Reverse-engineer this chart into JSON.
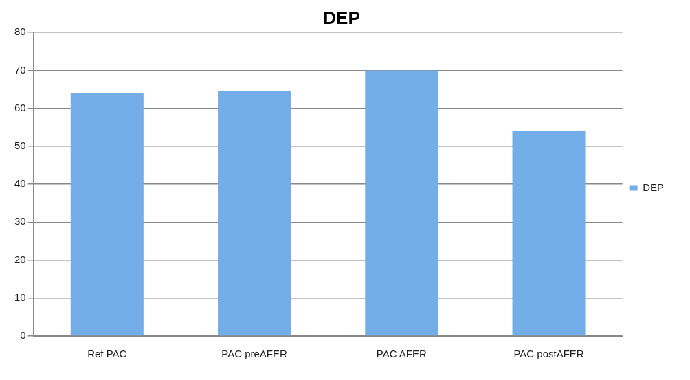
{
  "chart_data": {
    "type": "bar",
    "title": "DEP",
    "categories": [
      "Ref PAC",
      "PAC preAFER",
      "PAC AFER",
      "PAC postAFER"
    ],
    "series": [
      {
        "name": "DEP",
        "color": "#74aee8",
        "values": [
          64,
          64.5,
          70,
          54
        ]
      }
    ],
    "ylim": [
      0,
      80
    ],
    "yticks": [
      0,
      10,
      20,
      30,
      40,
      50,
      60,
      70,
      80
    ],
    "grid": "y",
    "legend": "right"
  }
}
